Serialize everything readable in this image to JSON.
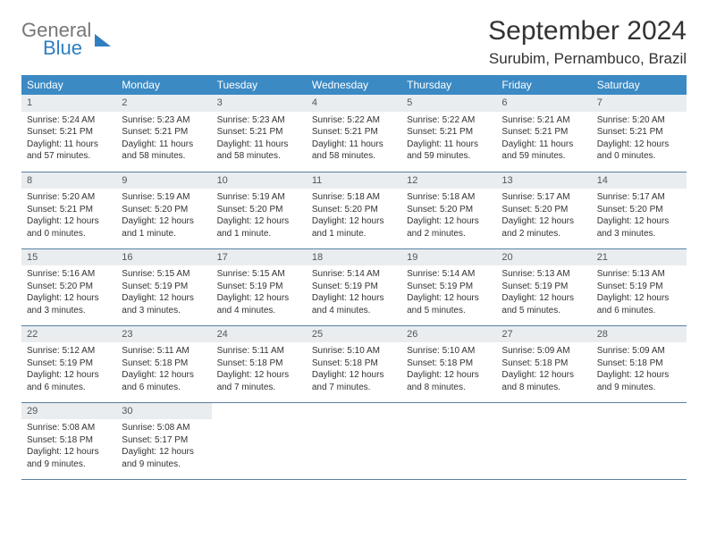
{
  "brand": {
    "line1": "General",
    "line2": "Blue"
  },
  "title": "September 2024",
  "location": "Surubim, Pernambuco, Brazil",
  "colors": {
    "header_bg": "#3b8ac4",
    "header_text": "#ffffff",
    "daynum_bg": "#e9edf0",
    "row_border": "#5a7fa0",
    "brand_blue": "#2f7fc1"
  },
  "weekdays": [
    "Sunday",
    "Monday",
    "Tuesday",
    "Wednesday",
    "Thursday",
    "Friday",
    "Saturday"
  ],
  "weeks": [
    [
      {
        "n": "1",
        "sr": "Sunrise: 5:24 AM",
        "ss": "Sunset: 5:21 PM",
        "dl": "Daylight: 11 hours and 57 minutes."
      },
      {
        "n": "2",
        "sr": "Sunrise: 5:23 AM",
        "ss": "Sunset: 5:21 PM",
        "dl": "Daylight: 11 hours and 58 minutes."
      },
      {
        "n": "3",
        "sr": "Sunrise: 5:23 AM",
        "ss": "Sunset: 5:21 PM",
        "dl": "Daylight: 11 hours and 58 minutes."
      },
      {
        "n": "4",
        "sr": "Sunrise: 5:22 AM",
        "ss": "Sunset: 5:21 PM",
        "dl": "Daylight: 11 hours and 58 minutes."
      },
      {
        "n": "5",
        "sr": "Sunrise: 5:22 AM",
        "ss": "Sunset: 5:21 PM",
        "dl": "Daylight: 11 hours and 59 minutes."
      },
      {
        "n": "6",
        "sr": "Sunrise: 5:21 AM",
        "ss": "Sunset: 5:21 PM",
        "dl": "Daylight: 11 hours and 59 minutes."
      },
      {
        "n": "7",
        "sr": "Sunrise: 5:20 AM",
        "ss": "Sunset: 5:21 PM",
        "dl": "Daylight: 12 hours and 0 minutes."
      }
    ],
    [
      {
        "n": "8",
        "sr": "Sunrise: 5:20 AM",
        "ss": "Sunset: 5:21 PM",
        "dl": "Daylight: 12 hours and 0 minutes."
      },
      {
        "n": "9",
        "sr": "Sunrise: 5:19 AM",
        "ss": "Sunset: 5:20 PM",
        "dl": "Daylight: 12 hours and 1 minute."
      },
      {
        "n": "10",
        "sr": "Sunrise: 5:19 AM",
        "ss": "Sunset: 5:20 PM",
        "dl": "Daylight: 12 hours and 1 minute."
      },
      {
        "n": "11",
        "sr": "Sunrise: 5:18 AM",
        "ss": "Sunset: 5:20 PM",
        "dl": "Daylight: 12 hours and 1 minute."
      },
      {
        "n": "12",
        "sr": "Sunrise: 5:18 AM",
        "ss": "Sunset: 5:20 PM",
        "dl": "Daylight: 12 hours and 2 minutes."
      },
      {
        "n": "13",
        "sr": "Sunrise: 5:17 AM",
        "ss": "Sunset: 5:20 PM",
        "dl": "Daylight: 12 hours and 2 minutes."
      },
      {
        "n": "14",
        "sr": "Sunrise: 5:17 AM",
        "ss": "Sunset: 5:20 PM",
        "dl": "Daylight: 12 hours and 3 minutes."
      }
    ],
    [
      {
        "n": "15",
        "sr": "Sunrise: 5:16 AM",
        "ss": "Sunset: 5:20 PM",
        "dl": "Daylight: 12 hours and 3 minutes."
      },
      {
        "n": "16",
        "sr": "Sunrise: 5:15 AM",
        "ss": "Sunset: 5:19 PM",
        "dl": "Daylight: 12 hours and 3 minutes."
      },
      {
        "n": "17",
        "sr": "Sunrise: 5:15 AM",
        "ss": "Sunset: 5:19 PM",
        "dl": "Daylight: 12 hours and 4 minutes."
      },
      {
        "n": "18",
        "sr": "Sunrise: 5:14 AM",
        "ss": "Sunset: 5:19 PM",
        "dl": "Daylight: 12 hours and 4 minutes."
      },
      {
        "n": "19",
        "sr": "Sunrise: 5:14 AM",
        "ss": "Sunset: 5:19 PM",
        "dl": "Daylight: 12 hours and 5 minutes."
      },
      {
        "n": "20",
        "sr": "Sunrise: 5:13 AM",
        "ss": "Sunset: 5:19 PM",
        "dl": "Daylight: 12 hours and 5 minutes."
      },
      {
        "n": "21",
        "sr": "Sunrise: 5:13 AM",
        "ss": "Sunset: 5:19 PM",
        "dl": "Daylight: 12 hours and 6 minutes."
      }
    ],
    [
      {
        "n": "22",
        "sr": "Sunrise: 5:12 AM",
        "ss": "Sunset: 5:19 PM",
        "dl": "Daylight: 12 hours and 6 minutes."
      },
      {
        "n": "23",
        "sr": "Sunrise: 5:11 AM",
        "ss": "Sunset: 5:18 PM",
        "dl": "Daylight: 12 hours and 6 minutes."
      },
      {
        "n": "24",
        "sr": "Sunrise: 5:11 AM",
        "ss": "Sunset: 5:18 PM",
        "dl": "Daylight: 12 hours and 7 minutes."
      },
      {
        "n": "25",
        "sr": "Sunrise: 5:10 AM",
        "ss": "Sunset: 5:18 PM",
        "dl": "Daylight: 12 hours and 7 minutes."
      },
      {
        "n": "26",
        "sr": "Sunrise: 5:10 AM",
        "ss": "Sunset: 5:18 PM",
        "dl": "Daylight: 12 hours and 8 minutes."
      },
      {
        "n": "27",
        "sr": "Sunrise: 5:09 AM",
        "ss": "Sunset: 5:18 PM",
        "dl": "Daylight: 12 hours and 8 minutes."
      },
      {
        "n": "28",
        "sr": "Sunrise: 5:09 AM",
        "ss": "Sunset: 5:18 PM",
        "dl": "Daylight: 12 hours and 9 minutes."
      }
    ],
    [
      {
        "n": "29",
        "sr": "Sunrise: 5:08 AM",
        "ss": "Sunset: 5:18 PM",
        "dl": "Daylight: 12 hours and 9 minutes."
      },
      {
        "n": "30",
        "sr": "Sunrise: 5:08 AM",
        "ss": "Sunset: 5:17 PM",
        "dl": "Daylight: 12 hours and 9 minutes."
      },
      null,
      null,
      null,
      null,
      null
    ]
  ]
}
